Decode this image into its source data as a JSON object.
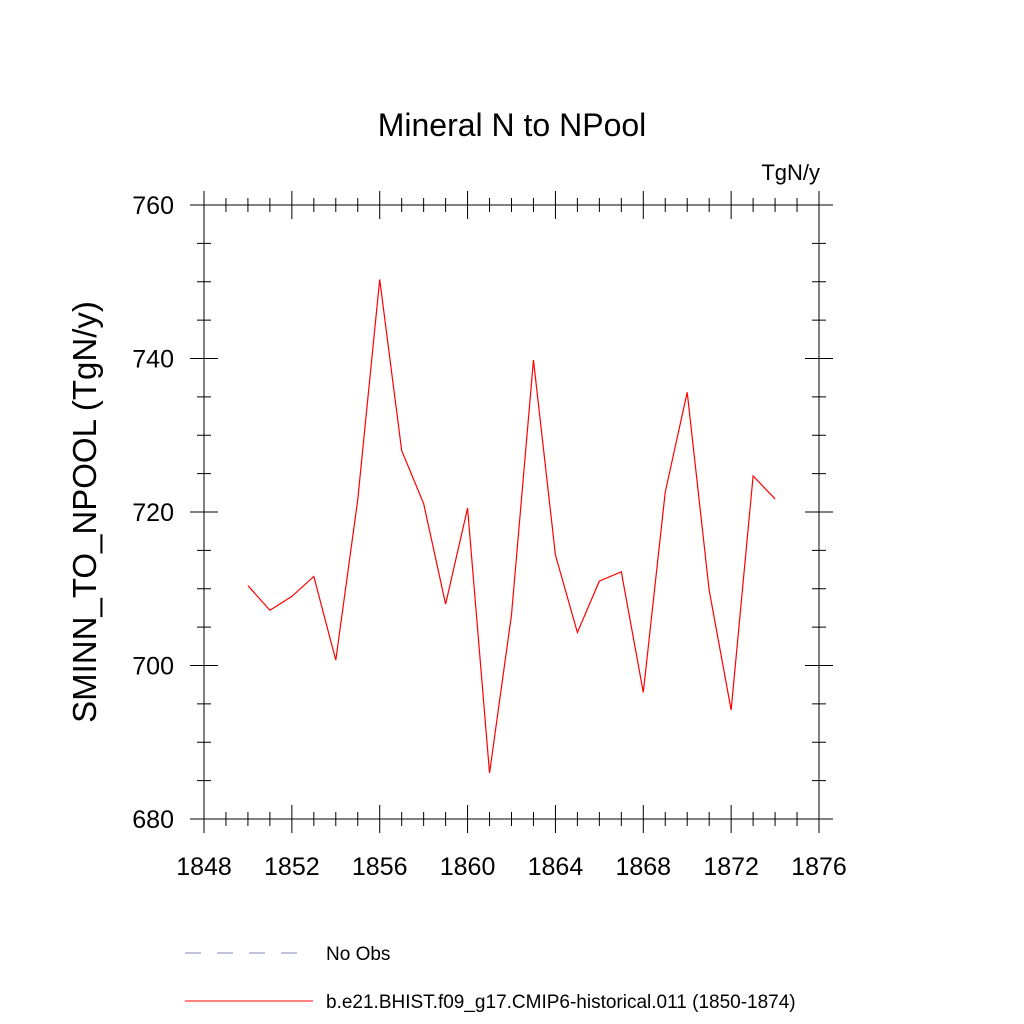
{
  "chart_data": {
    "type": "line",
    "title": "Mineral N to NPool",
    "units_label": "TgN/y",
    "ylabel": "SMINN_TO_NPOOL  (TgN/y)",
    "xlabel": "",
    "xlim": [
      1848,
      1876
    ],
    "ylim": [
      680,
      760
    ],
    "x_ticks": [
      1848,
      1852,
      1856,
      1860,
      1864,
      1868,
      1872,
      1876
    ],
    "y_ticks": [
      680,
      700,
      720,
      740,
      760
    ],
    "x_minor_step": 1,
    "y_minor_step": 5,
    "grid": false,
    "legend_position": "bottom",
    "series": [
      {
        "name": "b.e21.BHIST.f09_g17.CMIP6-historical.011 (1850-1874)",
        "color": "#ff0000",
        "style": "solid",
        "x": [
          1850,
          1851,
          1852,
          1853,
          1854,
          1855,
          1856,
          1857,
          1858,
          1859,
          1860,
          1861,
          1862,
          1863,
          1864,
          1865,
          1866,
          1867,
          1868,
          1869,
          1870,
          1871,
          1872,
          1873,
          1874
        ],
        "y": [
          710.4,
          707.2,
          709.0,
          711.6,
          700.7,
          721.6,
          750.3,
          728.0,
          721.1,
          708.0,
          720.5,
          686.0,
          706.6,
          739.8,
          714.4,
          704.3,
          711.0,
          712.2,
          696.5,
          722.6,
          735.6,
          709.8,
          694.2,
          724.7,
          721.7
        ]
      }
    ],
    "legend": [
      {
        "label": "No Obs",
        "color": "#8080c0",
        "style": "dashed"
      },
      {
        "label": "b.e21.BHIST.f09_g17.CMIP6-historical.011 (1850-1874)",
        "color": "#ff0000",
        "style": "solid"
      }
    ]
  }
}
